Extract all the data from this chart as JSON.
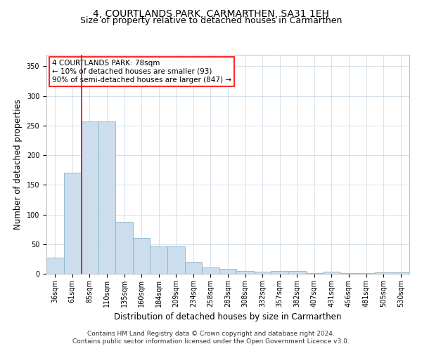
{
  "title": "4, COURTLANDS PARK, CARMARTHEN, SA31 1EH",
  "subtitle": "Size of property relative to detached houses in Carmarthen",
  "xlabel": "Distribution of detached houses by size in Carmarthen",
  "ylabel": "Number of detached properties",
  "categories": [
    "36sqm",
    "61sqm",
    "85sqm",
    "110sqm",
    "135sqm",
    "160sqm",
    "184sqm",
    "209sqm",
    "234sqm",
    "258sqm",
    "283sqm",
    "308sqm",
    "332sqm",
    "357sqm",
    "382sqm",
    "407sqm",
    "431sqm",
    "456sqm",
    "481sqm",
    "505sqm",
    "530sqm"
  ],
  "bar_values": [
    27,
    170,
    257,
    257,
    88,
    60,
    46,
    46,
    20,
    11,
    8,
    5,
    3,
    5,
    5,
    1,
    4,
    1,
    1,
    2,
    2
  ],
  "bar_color": "#ccdded",
  "bar_edge_color": "#8ab4cc",
  "red_line_x": 1.55,
  "annotation_line1": "4 COURTLANDS PARK: 78sqm",
  "annotation_line2": "← 10% of detached houses are smaller (93)",
  "annotation_line3": "90% of semi-detached houses are larger (847) →",
  "ylim": [
    0,
    370
  ],
  "yticks": [
    0,
    50,
    100,
    150,
    200,
    250,
    300,
    350
  ],
  "footnote1": "Contains HM Land Registry data © Crown copyright and database right 2024.",
  "footnote2": "Contains public sector information licensed under the Open Government Licence v3.0.",
  "title_fontsize": 10,
  "subtitle_fontsize": 9,
  "axis_label_fontsize": 8.5,
  "tick_fontsize": 7,
  "annotation_fontsize": 7.5,
  "footnote_fontsize": 6.5
}
